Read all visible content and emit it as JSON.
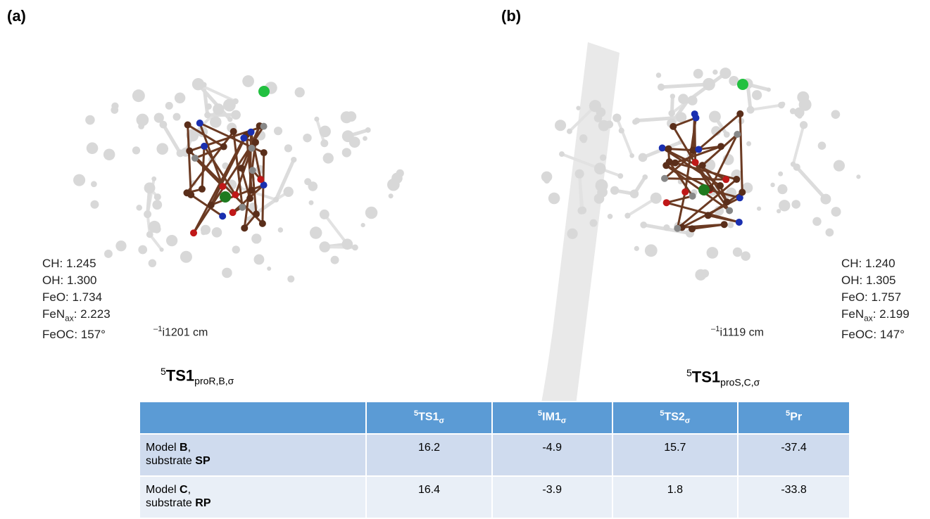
{
  "panels": [
    {
      "letter": "(a)",
      "measurements": [
        {
          "text": "CH: 1.245"
        },
        {
          "text": "OH: 1.300"
        },
        {
          "text": "FeO: 1.734"
        },
        {
          "text": "FeN",
          "sub": "ax",
          "after": ": 2.223"
        },
        {
          "text": "FeOC: 157°"
        }
      ],
      "frequency": {
        "text": "i1201 cm",
        "sup": "–1"
      },
      "label": {
        "sup": "5",
        "text": "TS1",
        "sub": "proR,B,σ"
      }
    },
    {
      "letter": "(b)",
      "measurements": [
        {
          "text": "CH: 1.240"
        },
        {
          "text": "OH: 1.305"
        },
        {
          "text": "FeO: 1.757"
        },
        {
          "text": "FeN",
          "sub": "ax",
          "after": ": 2.199"
        },
        {
          "text": "FeOC: 147°"
        }
      ],
      "frequency": {
        "text": "i1119 cm",
        "sup": "–1"
      },
      "label": {
        "sup": "5",
        "text": "TS1",
        "sub": "proS,C,σ"
      }
    }
  ],
  "table": {
    "header": [
      {
        "sup": "5",
        "text": "TS1",
        "sub": "σ"
      },
      {
        "sup": "5",
        "text": "IM1",
        "sub": "σ"
      },
      {
        "sup": "5",
        "text": "TS2",
        "sub": "σ"
      },
      {
        "sup": "5",
        "text": "Pr"
      }
    ],
    "rows": [
      {
        "label": [
          [
            {
              "text": "Model "
            },
            {
              "text": "B",
              "bold": true
            },
            {
              "text": ","
            }
          ],
          [
            {
              "text": "substrate "
            },
            {
              "text": "SP",
              "bold": true
            }
          ]
        ],
        "values": [
          16.2,
          -4.9,
          15.7,
          -37.4
        ]
      },
      {
        "label": [
          [
            {
              "text": "Model "
            },
            {
              "text": "C",
              "bold": true
            },
            {
              "text": ","
            }
          ],
          [
            {
              "text": "substrate "
            },
            {
              "text": "RP",
              "bold": true
            }
          ]
        ],
        "values": [
          16.4,
          -3.9,
          1.8,
          -33.8
        ]
      }
    ]
  }
}
